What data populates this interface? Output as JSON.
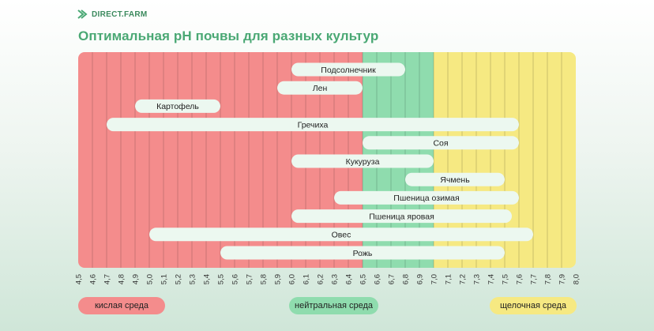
{
  "brand": {
    "name": "DIRECT.FARM",
    "logo_icon": "leaf-stripes-icon"
  },
  "legend": {
    "acid": "кислая среда",
    "neutral": "нейтральная среда",
    "alkaline": "щелочная среда"
  },
  "colors": {
    "acid": "#f48c8c",
    "neutral": "#8fdcae",
    "alkaline": "#f6e982",
    "title": "#4aa874",
    "bar": "#ecf8f0"
  },
  "chart_data": {
    "type": "bar",
    "orientation": "horizontal-range",
    "title": "Оптимальная pH почвы для разных культур",
    "xlim": [
      4.5,
      8.0
    ],
    "x_ticks": [
      "4,5",
      "4,6",
      "4,7",
      "4,8",
      "4,9",
      "5,0",
      "5,1",
      "5,2",
      "5,3",
      "5,4",
      "5,5",
      "5,6",
      "5,7",
      "5,8",
      "5,9",
      "6,0",
      "6,1",
      "6,2",
      "6,3",
      "6,4",
      "6,5",
      "6,6",
      "6,7",
      "6,8",
      "6,9",
      "7,0",
      "7,1",
      "7,2",
      "7,3",
      "7,4",
      "7,5",
      "7,6",
      "7,7",
      "7,8",
      "7,9",
      "8,0"
    ],
    "zones": [
      {
        "name": "кислая среда",
        "from": 4.5,
        "to": 6.5
      },
      {
        "name": "нейтральная среда",
        "from": 6.5,
        "to": 7.0
      },
      {
        "name": "щелочная среда",
        "from": 7.0,
        "to": 8.0
      }
    ],
    "crops": [
      {
        "name": "Подсолнечник",
        "from": 6.0,
        "to": 6.8
      },
      {
        "name": "Лен",
        "from": 5.9,
        "to": 6.5
      },
      {
        "name": "Картофель",
        "from": 4.9,
        "to": 5.5
      },
      {
        "name": "Гречиха",
        "from": 4.7,
        "to": 7.6
      },
      {
        "name": "Соя",
        "from": 6.5,
        "to": 7.6
      },
      {
        "name": "Кукуруза",
        "from": 6.0,
        "to": 7.0
      },
      {
        "name": "Ячмень",
        "from": 6.8,
        "to": 7.5
      },
      {
        "name": "Пшеница озимая",
        "from": 6.3,
        "to": 7.6
      },
      {
        "name": "Пшеница яровая",
        "from": 6.0,
        "to": 7.55
      },
      {
        "name": "Овес",
        "from": 5.0,
        "to": 7.7
      },
      {
        "name": "Рожь",
        "from": 5.5,
        "to": 7.5
      }
    ]
  }
}
